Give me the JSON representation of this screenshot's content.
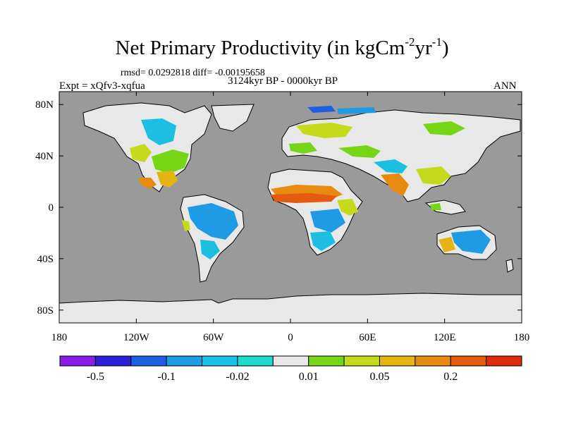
{
  "header": {
    "title_main": "Net Primary Productivity (in kgCm",
    "title_sup1": "-2",
    "title_mid": "yr",
    "title_sup2": "-1",
    "title_end": ")",
    "stats": "rmsd= 0.0292818 diff= -0.00195658",
    "period": "3124kyr BP - 0000kyr BP",
    "experiment": "Expt = xQfv3-xqfua",
    "season": "ANN"
  },
  "map": {
    "projection": "cylindrical equidistant",
    "lon_range": [
      -180,
      180
    ],
    "lat_range": [
      -90,
      90
    ],
    "ocean_color": "#9a9a9a",
    "ice_color": "#e8e8e8",
    "lat_ticks": [
      {
        "value": 80,
        "label": "80N"
      },
      {
        "value": 40,
        "label": "40N"
      },
      {
        "value": 0,
        "label": "0"
      },
      {
        "value": -40,
        "label": "40S"
      },
      {
        "value": -80,
        "label": "80S"
      }
    ],
    "lon_ticks": [
      {
        "value": -180,
        "label": "180"
      },
      {
        "value": -120,
        "label": "120W"
      },
      {
        "value": -60,
        "label": "60W"
      },
      {
        "value": 0,
        "label": "0"
      },
      {
        "value": 60,
        "label": "60E"
      },
      {
        "value": 120,
        "label": "120E"
      },
      {
        "value": 180,
        "label": "180"
      }
    ]
  },
  "colorbar": {
    "colors": [
      "#8a1ee6",
      "#2a1fd6",
      "#1c5fe0",
      "#1f9ae4",
      "#1cbee2",
      "#1fd8d0",
      "#e8e8e8",
      "#76d616",
      "#c4da1a",
      "#e4b410",
      "#e88a10",
      "#e45a10",
      "#e02a10"
    ],
    "labels": [
      {
        "after_box": 1,
        "text": "-0.5"
      },
      {
        "after_box": 3,
        "text": "-0.1"
      },
      {
        "after_box": 5,
        "text": "-0.02"
      },
      {
        "after_box": 7,
        "text": "0.01"
      },
      {
        "after_box": 9,
        "text": "0.05"
      },
      {
        "after_box": 11,
        "text": "0.2"
      }
    ]
  }
}
